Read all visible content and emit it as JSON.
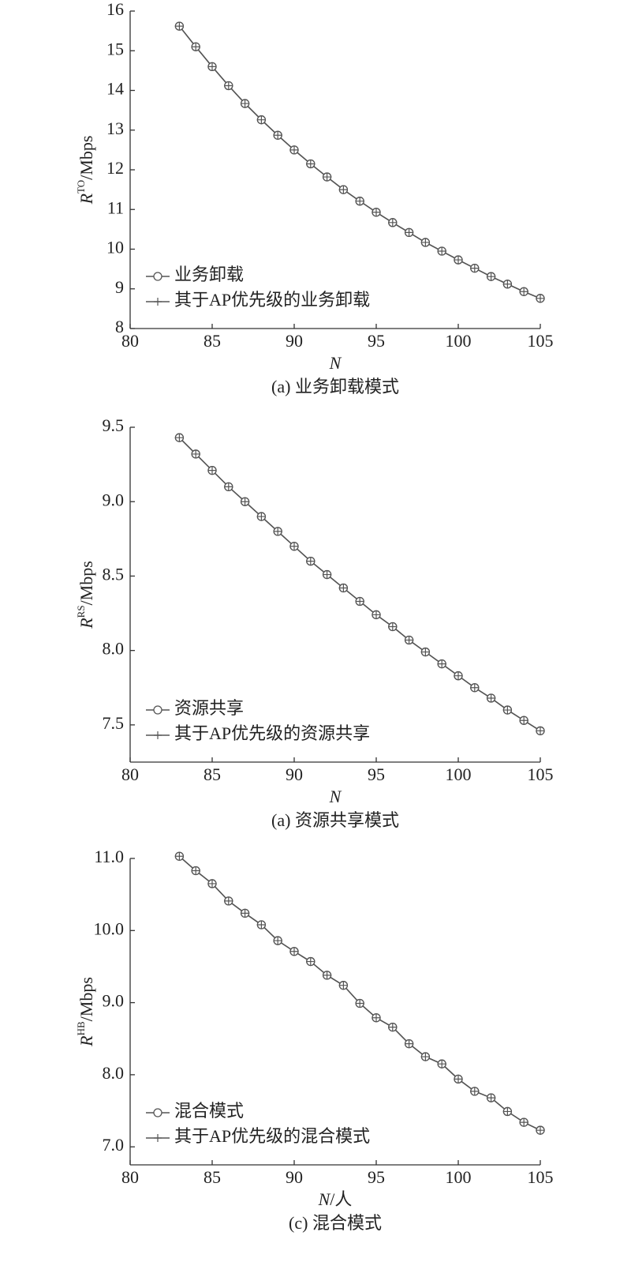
{
  "chart_data": [
    {
      "type": "line",
      "caption": "(a) 业务卸载模式",
      "xlabel": [
        "N"
      ],
      "ylabel": [
        "R",
        "TO",
        "/Mbps"
      ],
      "x": [
        83,
        84,
        85,
        86,
        87,
        88,
        89,
        90,
        91,
        92,
        93,
        94,
        95,
        96,
        97,
        98,
        99,
        100,
        101,
        102,
        103,
        104,
        105
      ],
      "series": [
        {
          "name": "业务卸载",
          "color": "#555555",
          "marker": "circle",
          "values": [
            15.62,
            15.1,
            14.6,
            14.12,
            13.67,
            13.26,
            12.87,
            12.5,
            12.15,
            11.82,
            11.5,
            11.21,
            10.93,
            10.67,
            10.42,
            10.17,
            9.95,
            9.73,
            9.52,
            9.31,
            9.12,
            8.93,
            8.76
          ]
        },
        {
          "name": "其于AP优先级的业务卸载",
          "color": "#555555",
          "marker": "plus",
          "values": [
            15.62,
            15.1,
            14.6,
            14.12,
            13.67,
            13.26,
            12.87,
            12.5,
            12.15,
            11.82,
            11.5,
            11.21,
            10.93,
            10.67,
            10.42,
            10.17,
            9.95,
            9.73,
            9.52,
            9.31,
            9.12,
            8.93,
            8.76
          ]
        }
      ],
      "xlim": [
        80,
        105
      ],
      "xticks": [
        80,
        85,
        90,
        95,
        100,
        105
      ],
      "ylim": [
        8,
        16
      ],
      "yticks": [
        8,
        9,
        10,
        11,
        12,
        13,
        14,
        15,
        16
      ],
      "legend": "lower left"
    },
    {
      "type": "line",
      "caption": "(a) 资源共享模式",
      "xlabel": [
        "N"
      ],
      "ylabel": [
        "R",
        "RS",
        "/Mbps"
      ],
      "x": [
        83,
        84,
        85,
        86,
        87,
        88,
        89,
        90,
        91,
        92,
        93,
        94,
        95,
        96,
        97,
        98,
        99,
        100,
        101,
        102,
        103,
        104,
        105
      ],
      "series": [
        {
          "name": "资源共享",
          "color": "#555555",
          "marker": "circle",
          "values": [
            9.43,
            9.32,
            9.21,
            9.1,
            9.0,
            8.9,
            8.8,
            8.7,
            8.6,
            8.51,
            8.42,
            8.33,
            8.24,
            8.16,
            8.07,
            7.99,
            7.91,
            7.83,
            7.75,
            7.68,
            7.6,
            7.53,
            7.46
          ]
        },
        {
          "name": "其于AP优先级的资源共享",
          "color": "#555555",
          "marker": "plus",
          "values": [
            9.43,
            9.32,
            9.21,
            9.1,
            9.0,
            8.9,
            8.8,
            8.7,
            8.6,
            8.51,
            8.42,
            8.33,
            8.24,
            8.16,
            8.07,
            7.99,
            7.91,
            7.83,
            7.75,
            7.68,
            7.6,
            7.53,
            7.46
          ]
        }
      ],
      "xlim": [
        80,
        105
      ],
      "xticks": [
        80,
        85,
        90,
        95,
        100,
        105
      ],
      "ylim": [
        7.25,
        9.5
      ],
      "yticks": [
        7.5,
        {
          "value": 8,
          "label": "8.0"
        },
        8.5,
        {
          "value": 9,
          "label": "9.0"
        },
        9.5
      ],
      "legend": "lower left"
    },
    {
      "type": "line",
      "caption": "(c) 混合模式",
      "xlabel": [
        "N",
        "/人"
      ],
      "ylabel": [
        "R",
        "HB",
        "/Mbps"
      ],
      "x": [
        83,
        84,
        85,
        86,
        87,
        88,
        89,
        90,
        91,
        92,
        93,
        94,
        95,
        96,
        97,
        98,
        99,
        100,
        101,
        102,
        103,
        104,
        105
      ],
      "series": [
        {
          "name": "混合模式",
          "color": "#555555",
          "marker": "circle",
          "values": [
            11.03,
            10.83,
            10.65,
            10.41,
            10.24,
            10.08,
            9.86,
            9.71,
            9.57,
            9.38,
            9.24,
            8.99,
            8.79,
            8.66,
            8.43,
            8.25,
            8.15,
            7.94,
            7.77,
            7.68,
            7.49,
            7.34,
            7.23
          ]
        },
        {
          "name": "其于AP优先级的混合模式",
          "color": "#555555",
          "marker": "plus",
          "values": [
            11.03,
            10.83,
            10.65,
            10.41,
            10.24,
            10.08,
            9.86,
            9.71,
            9.57,
            9.38,
            9.24,
            8.99,
            8.79,
            8.66,
            8.43,
            8.25,
            8.15,
            7.94,
            7.77,
            7.68,
            7.49,
            7.34,
            7.23
          ]
        }
      ],
      "xlim": [
        80,
        105
      ],
      "xticks": [
        80,
        85,
        90,
        95,
        100,
        105
      ],
      "ylim": [
        6.75,
        11
      ],
      "yticks": [
        {
          "value": 7,
          "label": "7.0"
        },
        {
          "value": 8,
          "label": "8.0"
        },
        {
          "value": 9,
          "label": "9.0"
        },
        {
          "value": 10,
          "label": "10.0"
        },
        {
          "value": 11,
          "label": "11.0"
        }
      ],
      "legend": "lower left"
    }
  ]
}
